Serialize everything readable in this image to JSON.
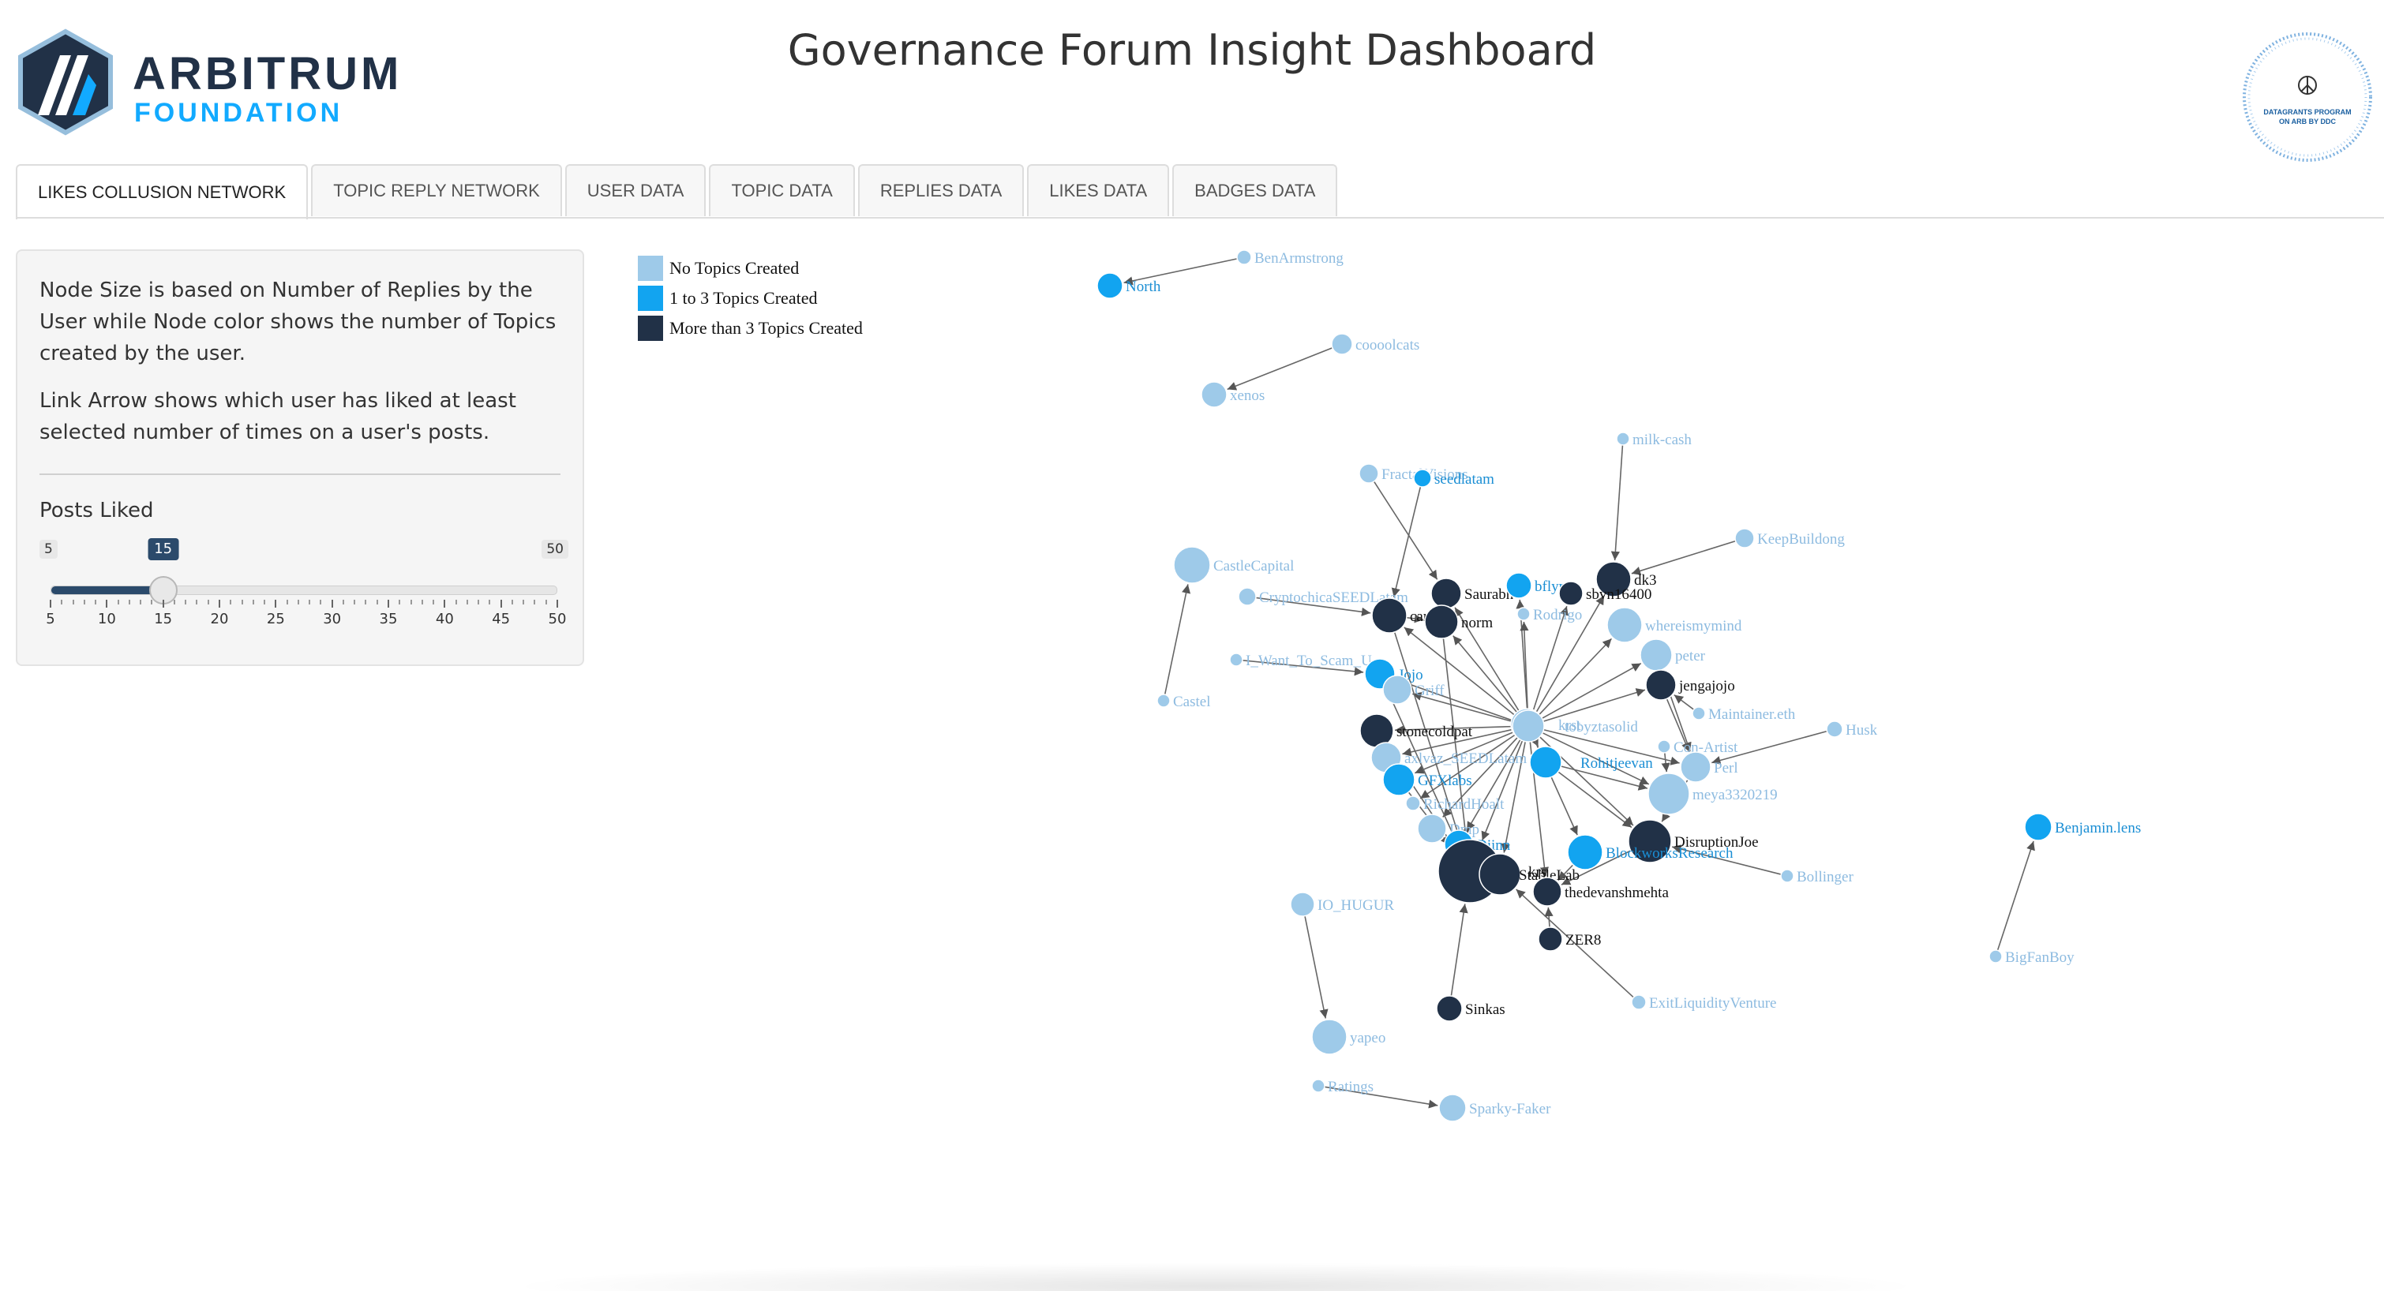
{
  "header": {
    "logo_word": "ARBITRUM",
    "logo_sub": "FOUNDATION",
    "title": "Governance Forum Insight Dashboard",
    "badge_text_1": "DATAGRANTS PROGRAM",
    "badge_text_2": "ON ARB BY DDC"
  },
  "tabs": [
    {
      "label": "LIKES COLLUSION NETWORK",
      "active": true
    },
    {
      "label": "TOPIC REPLY NETWORK",
      "active": false
    },
    {
      "label": "USER DATA",
      "active": false
    },
    {
      "label": "TOPIC DATA",
      "active": false
    },
    {
      "label": "REPLIES DATA",
      "active": false
    },
    {
      "label": "LIKES DATA",
      "active": false
    },
    {
      "label": "BADGES DATA",
      "active": false
    }
  ],
  "sidebar": {
    "desc1": "Node Size is based on Number of Replies by the User while Node color shows the number of Topics created by the user.",
    "desc2": "Link Arrow shows which user has liked at least selected number of times on a user's posts.",
    "slider_label": "Posts Liked",
    "slider": {
      "min": 5,
      "max": 50,
      "value": 15,
      "ticks": [
        5,
        10,
        15,
        20,
        25,
        30,
        35,
        40,
        45,
        50
      ]
    }
  },
  "legend": [
    {
      "label": "No Topics Created",
      "color": "#9ecae9"
    },
    {
      "label": "1 to 3 Topics Created",
      "color": "#12a4f0"
    },
    {
      "label": "More than 3 Topics Created",
      "color": "#213147"
    }
  ],
  "colors": {
    "none": "#9ecae9",
    "few": "#12a4f0",
    "many": "#213147",
    "link": "#666666"
  },
  "network": {
    "nodes": [
      {
        "id": "North",
        "group": "few",
        "size": 16
      },
      {
        "id": "BenArmstrong",
        "group": "none",
        "size": 9
      },
      {
        "id": "coooolcats",
        "group": "none",
        "size": 13
      },
      {
        "id": "xenos",
        "group": "none",
        "size": 16
      },
      {
        "id": "milk-cash",
        "group": "none",
        "size": 8
      },
      {
        "id": "FractalVisions",
        "group": "none",
        "size": 12
      },
      {
        "id": "seedlatam",
        "group": "few",
        "size": 11
      },
      {
        "id": "KeepBuildong",
        "group": "none",
        "size": 12
      },
      {
        "id": "CastleCapital",
        "group": "none",
        "size": 23
      },
      {
        "id": "CryptochicaSEEDLatam",
        "group": "none",
        "size": 11
      },
      {
        "id": "Saurabh",
        "group": "many",
        "size": 19
      },
      {
        "id": "bflynn",
        "group": "few",
        "size": 16
      },
      {
        "id": "dk3",
        "group": "many",
        "size": 22
      },
      {
        "id": "sbvn16400",
        "group": "many",
        "size": 15
      },
      {
        "id": "cantor",
        "group": "many",
        "size": 22
      },
      {
        "id": "norm",
        "group": "many",
        "size": 21
      },
      {
        "id": "Rodrigo",
        "group": "none",
        "size": 8
      },
      {
        "id": "whereismymind",
        "group": "none",
        "size": 22
      },
      {
        "id": "I_Want_To_Scam_U",
        "group": "none",
        "size": 8
      },
      {
        "id": "Jojo",
        "group": "few",
        "size": 19
      },
      {
        "id": "Griff",
        "group": "none",
        "size": 18
      },
      {
        "id": "peter",
        "group": "none",
        "size": 20
      },
      {
        "id": "jengajojo",
        "group": "many",
        "size": 19
      },
      {
        "id": "Castel",
        "group": "none",
        "size": 8
      },
      {
        "id": "Maintainer.eth",
        "group": "none",
        "size": 8
      },
      {
        "id": "Husk",
        "group": "none",
        "size": 10
      },
      {
        "id": "krst",
        "group": "none",
        "size": 20
      },
      {
        "id": "stonecoldpat",
        "group": "many",
        "size": 21
      },
      {
        "id": "Con-Artist",
        "group": "none",
        "size": 8
      },
      {
        "id": "Perl",
        "group": "none",
        "size": 19
      },
      {
        "id": "axlvaz_SEEDLatam",
        "group": "none",
        "size": 19
      },
      {
        "id": "Rohitjeevan",
        "group": "few",
        "size": 20
      },
      {
        "id": "GFXlabs",
        "group": "few",
        "size": 20
      },
      {
        "id": "meya3320219",
        "group": "none",
        "size": 26
      },
      {
        "id": "RichardHoalt",
        "group": "none",
        "size": 9
      },
      {
        "id": "Dmp",
        "group": "none",
        "size": 18
      },
      {
        "id": "Djinn",
        "group": "few",
        "size": 18
      },
      {
        "id": "DisruptionJoe",
        "group": "many",
        "size": 27
      },
      {
        "id": "BlockworksResearch",
        "group": "few",
        "size": 22
      },
      {
        "id": "Bollinger",
        "group": "none",
        "size": 8
      },
      {
        "id": "krs",
        "group": "many",
        "size": 40
      },
      {
        "id": "StableLab",
        "group": "many",
        "size": 26
      },
      {
        "id": "thedevanshmehta",
        "group": "many",
        "size": 18
      },
      {
        "id": "Benjamin.lens",
        "group": "few",
        "size": 17
      },
      {
        "id": "IO_HUGUR",
        "group": "none",
        "size": 15
      },
      {
        "id": "BigFanBoy",
        "group": "none",
        "size": 8
      },
      {
        "id": "ZER8",
        "group": "many",
        "size": 15
      },
      {
        "id": "ExitLiquidityVenture",
        "group": "none",
        "size": 9
      },
      {
        "id": "Sinkas",
        "group": "many",
        "size": 16
      },
      {
        "id": "yapeo",
        "group": "none",
        "size": 22
      },
      {
        "id": "Ratings",
        "group": "none",
        "size": 8
      },
      {
        "id": "Sparky-Faker",
        "group": "none",
        "size": 17
      },
      {
        "id": "tobyztasolid",
        "group": "none",
        "size": 20
      }
    ],
    "links": [
      [
        "BenArmstrong",
        "North"
      ],
      [
        "coooolcats",
        "xenos"
      ],
      [
        "milk-cash",
        "dk3"
      ],
      [
        "KeepBuildong",
        "dk3"
      ],
      [
        "FractalVisions",
        "Saurabh"
      ],
      [
        "seedlatam",
        "cantor"
      ],
      [
        "Castel",
        "CastleCapital"
      ],
      [
        "CryptochicaSEEDLatam",
        "cantor"
      ],
      [
        "I_Want_To_Scam_U",
        "Jojo"
      ],
      [
        "Husk",
        "Perl"
      ],
      [
        "Maintainer.eth",
        "jengajojo"
      ],
      [
        "Con-Artist",
        "meya3320219"
      ],
      [
        "Bollinger",
        "DisruptionJoe"
      ],
      [
        "BigFanBoy",
        "Benjamin.lens"
      ],
      [
        "IO_HUGUR",
        "yapeo"
      ],
      [
        "Ratings",
        "Sparky-Faker"
      ],
      [
        "ExitLiquidityVenture",
        "StableLab"
      ],
      [
        "Sinkas",
        "krs"
      ],
      [
        "ZER8",
        "thedevanshmehta"
      ],
      [
        "tobyztasolid",
        "cantor"
      ],
      [
        "tobyztasolid",
        "norm"
      ],
      [
        "tobyztasolid",
        "Saurabh"
      ],
      [
        "tobyztasolid",
        "bflynn"
      ],
      [
        "tobyztasolid",
        "dk3"
      ],
      [
        "tobyztasolid",
        "sbvn16400"
      ],
      [
        "tobyztasolid",
        "whereismymind"
      ],
      [
        "tobyztasolid",
        "peter"
      ],
      [
        "tobyztasolid",
        "jengajojo"
      ],
      [
        "tobyztasolid",
        "Jojo"
      ],
      [
        "tobyztasolid",
        "Griff"
      ],
      [
        "tobyztasolid",
        "stonecoldpat"
      ],
      [
        "tobyztasolid",
        "krst"
      ],
      [
        "tobyztasolid",
        "axlvaz_SEEDLatam"
      ],
      [
        "tobyztasolid",
        "GFXlabs"
      ],
      [
        "tobyztasolid",
        "Rohitjeevan"
      ],
      [
        "tobyztasolid",
        "Perl"
      ],
      [
        "tobyztasolid",
        "meya3320219"
      ],
      [
        "tobyztasolid",
        "DisruptionJoe"
      ],
      [
        "tobyztasolid",
        "BlockworksResearch"
      ],
      [
        "tobyztasolid",
        "thedevanshmehta"
      ],
      [
        "tobyztasolid",
        "StableLab"
      ],
      [
        "tobyztasolid",
        "krs"
      ],
      [
        "tobyztasolid",
        "Djinn"
      ],
      [
        "tobyztasolid",
        "Dmp"
      ],
      [
        "tobyztasolid",
        "RichardHoalt"
      ],
      [
        "tobyztasolid",
        "Rodrigo"
      ],
      [
        "Rohitjeevan",
        "meya3320219"
      ],
      [
        "Rohitjeevan",
        "DisruptionJoe"
      ],
      [
        "GFXlabs",
        "krs"
      ],
      [
        "stonecoldpat",
        "krs"
      ],
      [
        "Jojo",
        "krs"
      ],
      [
        "cantor",
        "krs"
      ],
      [
        "norm",
        "krs"
      ],
      [
        "DisruptionJoe",
        "thedevanshmehta"
      ],
      [
        "BlockworksResearch",
        "thedevanshmehta"
      ],
      [
        "Perl",
        "DisruptionJoe"
      ],
      [
        "jengajojo",
        "Perl"
      ],
      [
        "peter",
        "Perl"
      ],
      [
        "Saurabh",
        "norm"
      ],
      [
        "cantor",
        "norm"
      ]
    ]
  }
}
